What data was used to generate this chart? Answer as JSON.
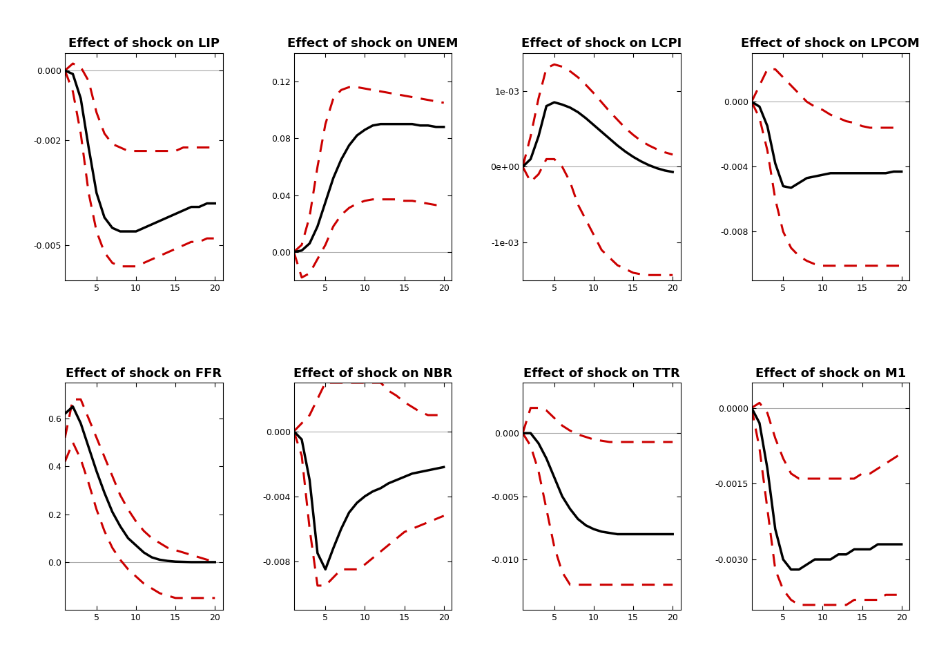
{
  "titles": [
    "Effect of shock on LIP",
    "Effect of shock on UNEM",
    "Effect of shock on LCPI",
    "Effect of shock on LPCOM",
    "Effect of shock on FFR",
    "Effect of shock on NBR",
    "Effect of shock on TTR",
    "Effect of shock on M1"
  ],
  "xlim": [
    1,
    21
  ],
  "xticks": [
    5,
    10,
    15,
    20
  ],
  "panels": {
    "LIP": {
      "ylim": [
        -0.006,
        0.0005
      ],
      "yticks": [
        0.0,
        -0.002,
        -0.005
      ],
      "ytick_labels": [
        "0.000",
        "-0.002",
        "-0.005"
      ],
      "zero_line": 0.0,
      "x": [
        1,
        2,
        3,
        4,
        5,
        6,
        7,
        8,
        9,
        10,
        11,
        12,
        13,
        14,
        15,
        16,
        17,
        18,
        19,
        20
      ],
      "irf": [
        0.0,
        -0.0001,
        -0.0008,
        -0.0022,
        -0.0035,
        -0.0042,
        -0.0045,
        -0.0046,
        -0.0046,
        -0.0046,
        -0.0045,
        -0.0044,
        -0.0043,
        -0.0042,
        -0.0041,
        -0.004,
        -0.0039,
        -0.0039,
        -0.0038,
        -0.0038
      ],
      "upper": [
        0.0,
        0.0002,
        0.0001,
        -0.0003,
        -0.0012,
        -0.0018,
        -0.0021,
        -0.0022,
        -0.0023,
        -0.0023,
        -0.0023,
        -0.0023,
        -0.0023,
        -0.0023,
        -0.0023,
        -0.0022,
        -0.0022,
        -0.0022,
        -0.0022,
        -0.0022
      ],
      "lower": [
        0.0,
        -0.0006,
        -0.0018,
        -0.0035,
        -0.0046,
        -0.0052,
        -0.0055,
        -0.0056,
        -0.0056,
        -0.0056,
        -0.0055,
        -0.0054,
        -0.0053,
        -0.0052,
        -0.0051,
        -0.005,
        -0.0049,
        -0.0049,
        -0.0048,
        -0.0048
      ]
    },
    "UNEM": {
      "ylim": [
        -0.02,
        0.14
      ],
      "yticks": [
        0.0,
        0.04,
        0.08,
        0.12
      ],
      "ytick_labels": [
        "0.00",
        "0.04",
        "0.08",
        "0.12"
      ],
      "zero_line": 0.0,
      "x": [
        1,
        2,
        3,
        4,
        5,
        6,
        7,
        8,
        9,
        10,
        11,
        12,
        13,
        14,
        15,
        16,
        17,
        18,
        19,
        20
      ],
      "irf": [
        0.0,
        0.001,
        0.006,
        0.018,
        0.035,
        0.052,
        0.065,
        0.075,
        0.082,
        0.086,
        0.089,
        0.09,
        0.09,
        0.09,
        0.09,
        0.09,
        0.089,
        0.089,
        0.088,
        0.088
      ],
      "upper": [
        0.0,
        0.005,
        0.025,
        0.06,
        0.09,
        0.108,
        0.114,
        0.116,
        0.116,
        0.115,
        0.114,
        0.113,
        0.112,
        0.111,
        0.11,
        0.109,
        0.108,
        0.107,
        0.106,
        0.105
      ],
      "lower": [
        0.0,
        -0.018,
        -0.015,
        -0.005,
        0.005,
        0.018,
        0.026,
        0.031,
        0.034,
        0.036,
        0.037,
        0.037,
        0.037,
        0.037,
        0.036,
        0.036,
        0.035,
        0.034,
        0.033,
        0.033
      ]
    },
    "LCPI": {
      "ylim": [
        -0.0015,
        0.0015
      ],
      "yticks": [
        -0.001,
        0.0,
        0.001
      ],
      "ytick_labels": [
        "-1e-03",
        "0e+00",
        "1e-03"
      ],
      "zero_line": 0.0,
      "x": [
        1,
        2,
        3,
        4,
        5,
        6,
        7,
        8,
        9,
        10,
        11,
        12,
        13,
        14,
        15,
        16,
        17,
        18,
        19,
        20
      ],
      "irf": [
        0.0,
        0.0001,
        0.0004,
        0.0008,
        0.00085,
        0.00082,
        0.00078,
        0.00072,
        0.00064,
        0.00055,
        0.00046,
        0.00037,
        0.00028,
        0.0002,
        0.00013,
        7e-05,
        2e-05,
        -2e-05,
        -5e-05,
        -7e-05
      ],
      "upper": [
        0.0,
        0.0004,
        0.0009,
        0.0013,
        0.00135,
        0.00132,
        0.00126,
        0.00118,
        0.00108,
        0.00097,
        0.00085,
        0.00073,
        0.00062,
        0.00051,
        0.00042,
        0.00034,
        0.00028,
        0.00023,
        0.00019,
        0.00016
      ],
      "lower": [
        0.0,
        -0.0002,
        -0.0001,
        0.0001,
        0.0001,
        0.0,
        -0.0002,
        -0.0005,
        -0.0007,
        -0.0009,
        -0.0011,
        -0.0012,
        -0.0013,
        -0.00135,
        -0.0014,
        -0.00142,
        -0.00143,
        -0.00143,
        -0.00143,
        -0.00143
      ]
    },
    "LPCOM": {
      "ylim": [
        -0.011,
        0.003
      ],
      "yticks": [
        0.0,
        -0.004,
        -0.008
      ],
      "ytick_labels": [
        "0.000",
        "-0.004",
        "-0.008"
      ],
      "zero_line": 0.0,
      "x": [
        1,
        2,
        3,
        4,
        5,
        6,
        7,
        8,
        9,
        10,
        11,
        12,
        13,
        14,
        15,
        16,
        17,
        18,
        19,
        20
      ],
      "irf": [
        0.0,
        -0.0003,
        -0.0015,
        -0.0038,
        -0.0052,
        -0.0053,
        -0.005,
        -0.0047,
        -0.0046,
        -0.0045,
        -0.0044,
        -0.0044,
        -0.0044,
        -0.0044,
        -0.0044,
        -0.0044,
        -0.0044,
        -0.0044,
        -0.0043,
        -0.0043
      ],
      "upper": [
        0.0,
        0.001,
        0.002,
        0.002,
        0.0015,
        0.001,
        0.0005,
        0.0,
        -0.0003,
        -0.0005,
        -0.0008,
        -0.001,
        -0.0012,
        -0.0013,
        -0.0015,
        -0.0016,
        -0.0016,
        -0.0016,
        -0.0016,
        -0.0016
      ],
      "lower": [
        0.0,
        -0.001,
        -0.003,
        -0.006,
        -0.008,
        -0.009,
        -0.0095,
        -0.0098,
        -0.01,
        -0.0101,
        -0.0101,
        -0.0101,
        -0.0101,
        -0.0101,
        -0.0101,
        -0.0101,
        -0.0101,
        -0.0101,
        -0.0101,
        -0.0101
      ]
    },
    "FFR": {
      "ylim": [
        -0.2,
        0.75
      ],
      "yticks": [
        0.0,
        0.2,
        0.4,
        0.6
      ],
      "ytick_labels": [
        "0.0",
        "0.2",
        "0.4",
        "0.6"
      ],
      "zero_line": 0.0,
      "x": [
        1,
        2,
        3,
        4,
        5,
        6,
        7,
        8,
        9,
        10,
        11,
        12,
        13,
        14,
        15,
        16,
        17,
        18,
        19,
        20
      ],
      "irf": [
        0.62,
        0.65,
        0.58,
        0.48,
        0.38,
        0.29,
        0.21,
        0.15,
        0.1,
        0.07,
        0.04,
        0.02,
        0.01,
        0.005,
        0.002,
        0.001,
        0.0,
        0.0,
        0.0,
        0.0
      ],
      "upper": [
        0.52,
        0.68,
        0.68,
        0.6,
        0.52,
        0.44,
        0.36,
        0.28,
        0.22,
        0.17,
        0.13,
        0.1,
        0.08,
        0.06,
        0.05,
        0.04,
        0.03,
        0.02,
        0.01,
        0.0
      ],
      "lower": [
        0.42,
        0.5,
        0.43,
        0.33,
        0.22,
        0.13,
        0.06,
        0.01,
        -0.03,
        -0.06,
        -0.09,
        -0.11,
        -0.13,
        -0.14,
        -0.15,
        -0.15,
        -0.15,
        -0.15,
        -0.15,
        -0.15
      ]
    },
    "NBR": {
      "ylim": [
        -0.011,
        0.003
      ],
      "yticks": [
        0.0,
        -0.004,
        -0.008
      ],
      "ytick_labels": [
        "0.000",
        "-0.004",
        "-0.008"
      ],
      "zero_line": 0.0,
      "x": [
        1,
        2,
        3,
        4,
        5,
        6,
        7,
        8,
        9,
        10,
        11,
        12,
        13,
        14,
        15,
        16,
        17,
        18,
        19,
        20
      ],
      "irf": [
        0.0,
        -0.0005,
        -0.003,
        -0.0075,
        -0.0085,
        -0.0072,
        -0.006,
        -0.005,
        -0.0044,
        -0.004,
        -0.0037,
        -0.0035,
        -0.0032,
        -0.003,
        -0.0028,
        -0.0026,
        -0.0025,
        -0.0024,
        -0.0023,
        -0.0022
      ],
      "upper": [
        0.0,
        0.0005,
        0.001,
        0.002,
        0.003,
        0.003,
        0.003,
        0.003,
        0.003,
        0.003,
        0.003,
        0.003,
        0.0025,
        0.0022,
        0.0018,
        0.0015,
        0.0012,
        0.001,
        0.001,
        0.001
      ],
      "lower": [
        0.0,
        -0.0015,
        -0.006,
        -0.0095,
        -0.0095,
        -0.009,
        -0.0085,
        -0.0085,
        -0.0085,
        -0.0082,
        -0.0078,
        -0.0074,
        -0.007,
        -0.0066,
        -0.0062,
        -0.006,
        -0.0058,
        -0.0056,
        -0.0054,
        -0.0052
      ]
    },
    "TTR": {
      "ylim": [
        -0.014,
        0.004
      ],
      "yticks": [
        0.0,
        -0.005,
        -0.01
      ],
      "ytick_labels": [
        "0.000",
        "-0.005",
        "-0.010"
      ],
      "zero_line": 0.0,
      "x": [
        1,
        2,
        3,
        4,
        5,
        6,
        7,
        8,
        9,
        10,
        11,
        12,
        13,
        14,
        15,
        16,
        17,
        18,
        19,
        20
      ],
      "irf": [
        0.0,
        0.0,
        -0.0008,
        -0.002,
        -0.0035,
        -0.005,
        -0.006,
        -0.0068,
        -0.0073,
        -0.0076,
        -0.0078,
        -0.0079,
        -0.008,
        -0.008,
        -0.008,
        -0.008,
        -0.008,
        -0.008,
        -0.008,
        -0.008
      ],
      "upper": [
        0.0,
        0.002,
        0.002,
        0.0018,
        0.0012,
        0.0006,
        0.0002,
        -0.0001,
        -0.0003,
        -0.0005,
        -0.0006,
        -0.0007,
        -0.0007,
        -0.0007,
        -0.0007,
        -0.0007,
        -0.0007,
        -0.0007,
        -0.0007,
        -0.0007
      ],
      "lower": [
        0.0,
        -0.001,
        -0.003,
        -0.006,
        -0.009,
        -0.011,
        -0.012,
        -0.012,
        -0.012,
        -0.012,
        -0.012,
        -0.012,
        -0.012,
        -0.012,
        -0.012,
        -0.012,
        -0.012,
        -0.012,
        -0.012,
        -0.012
      ]
    },
    "M1": {
      "ylim": [
        -0.004,
        0.0005
      ],
      "yticks": [
        0.0,
        -0.0015,
        -0.003
      ],
      "ytick_labels": [
        "0.0000",
        "-0.0015",
        "-0.0030"
      ],
      "zero_line": 0.0,
      "x": [
        1,
        2,
        3,
        4,
        5,
        6,
        7,
        8,
        9,
        10,
        11,
        12,
        13,
        14,
        15,
        16,
        17,
        18,
        19,
        20
      ],
      "irf": [
        0.0,
        -0.0003,
        -0.0012,
        -0.0024,
        -0.003,
        -0.0032,
        -0.0032,
        -0.0031,
        -0.003,
        -0.003,
        -0.003,
        -0.0029,
        -0.0029,
        -0.0028,
        -0.0028,
        -0.0028,
        -0.0027,
        -0.0027,
        -0.0027,
        -0.0027
      ],
      "upper": [
        0.0,
        0.0001,
        -0.0001,
        -0.0006,
        -0.001,
        -0.0013,
        -0.0014,
        -0.0014,
        -0.0014,
        -0.0014,
        -0.0014,
        -0.0014,
        -0.0014,
        -0.0014,
        -0.0013,
        -0.0013,
        -0.0012,
        -0.0011,
        -0.001,
        -0.0009
      ],
      "lower": [
        0.0,
        -0.0008,
        -0.002,
        -0.0032,
        -0.0036,
        -0.0038,
        -0.0039,
        -0.0039,
        -0.0039,
        -0.0039,
        -0.0039,
        -0.0039,
        -0.0039,
        -0.0038,
        -0.0038,
        -0.0038,
        -0.0038,
        -0.0037,
        -0.0037,
        -0.0037
      ]
    }
  },
  "panel_order": [
    "LIP",
    "UNEM",
    "LCPI",
    "LPCOM",
    "FFR",
    "NBR",
    "TTR",
    "M1"
  ],
  "irf_color": "#000000",
  "ci_color": "#cc0000",
  "zero_color": "#aaaaaa",
  "background": "#ffffff",
  "title_fontsize": 13,
  "tick_fontsize": 9,
  "irf_linewidth": 2.5,
  "ci_linewidth": 2.2,
  "ci_dashes": [
    6,
    4
  ],
  "zero_linewidth": 0.8
}
